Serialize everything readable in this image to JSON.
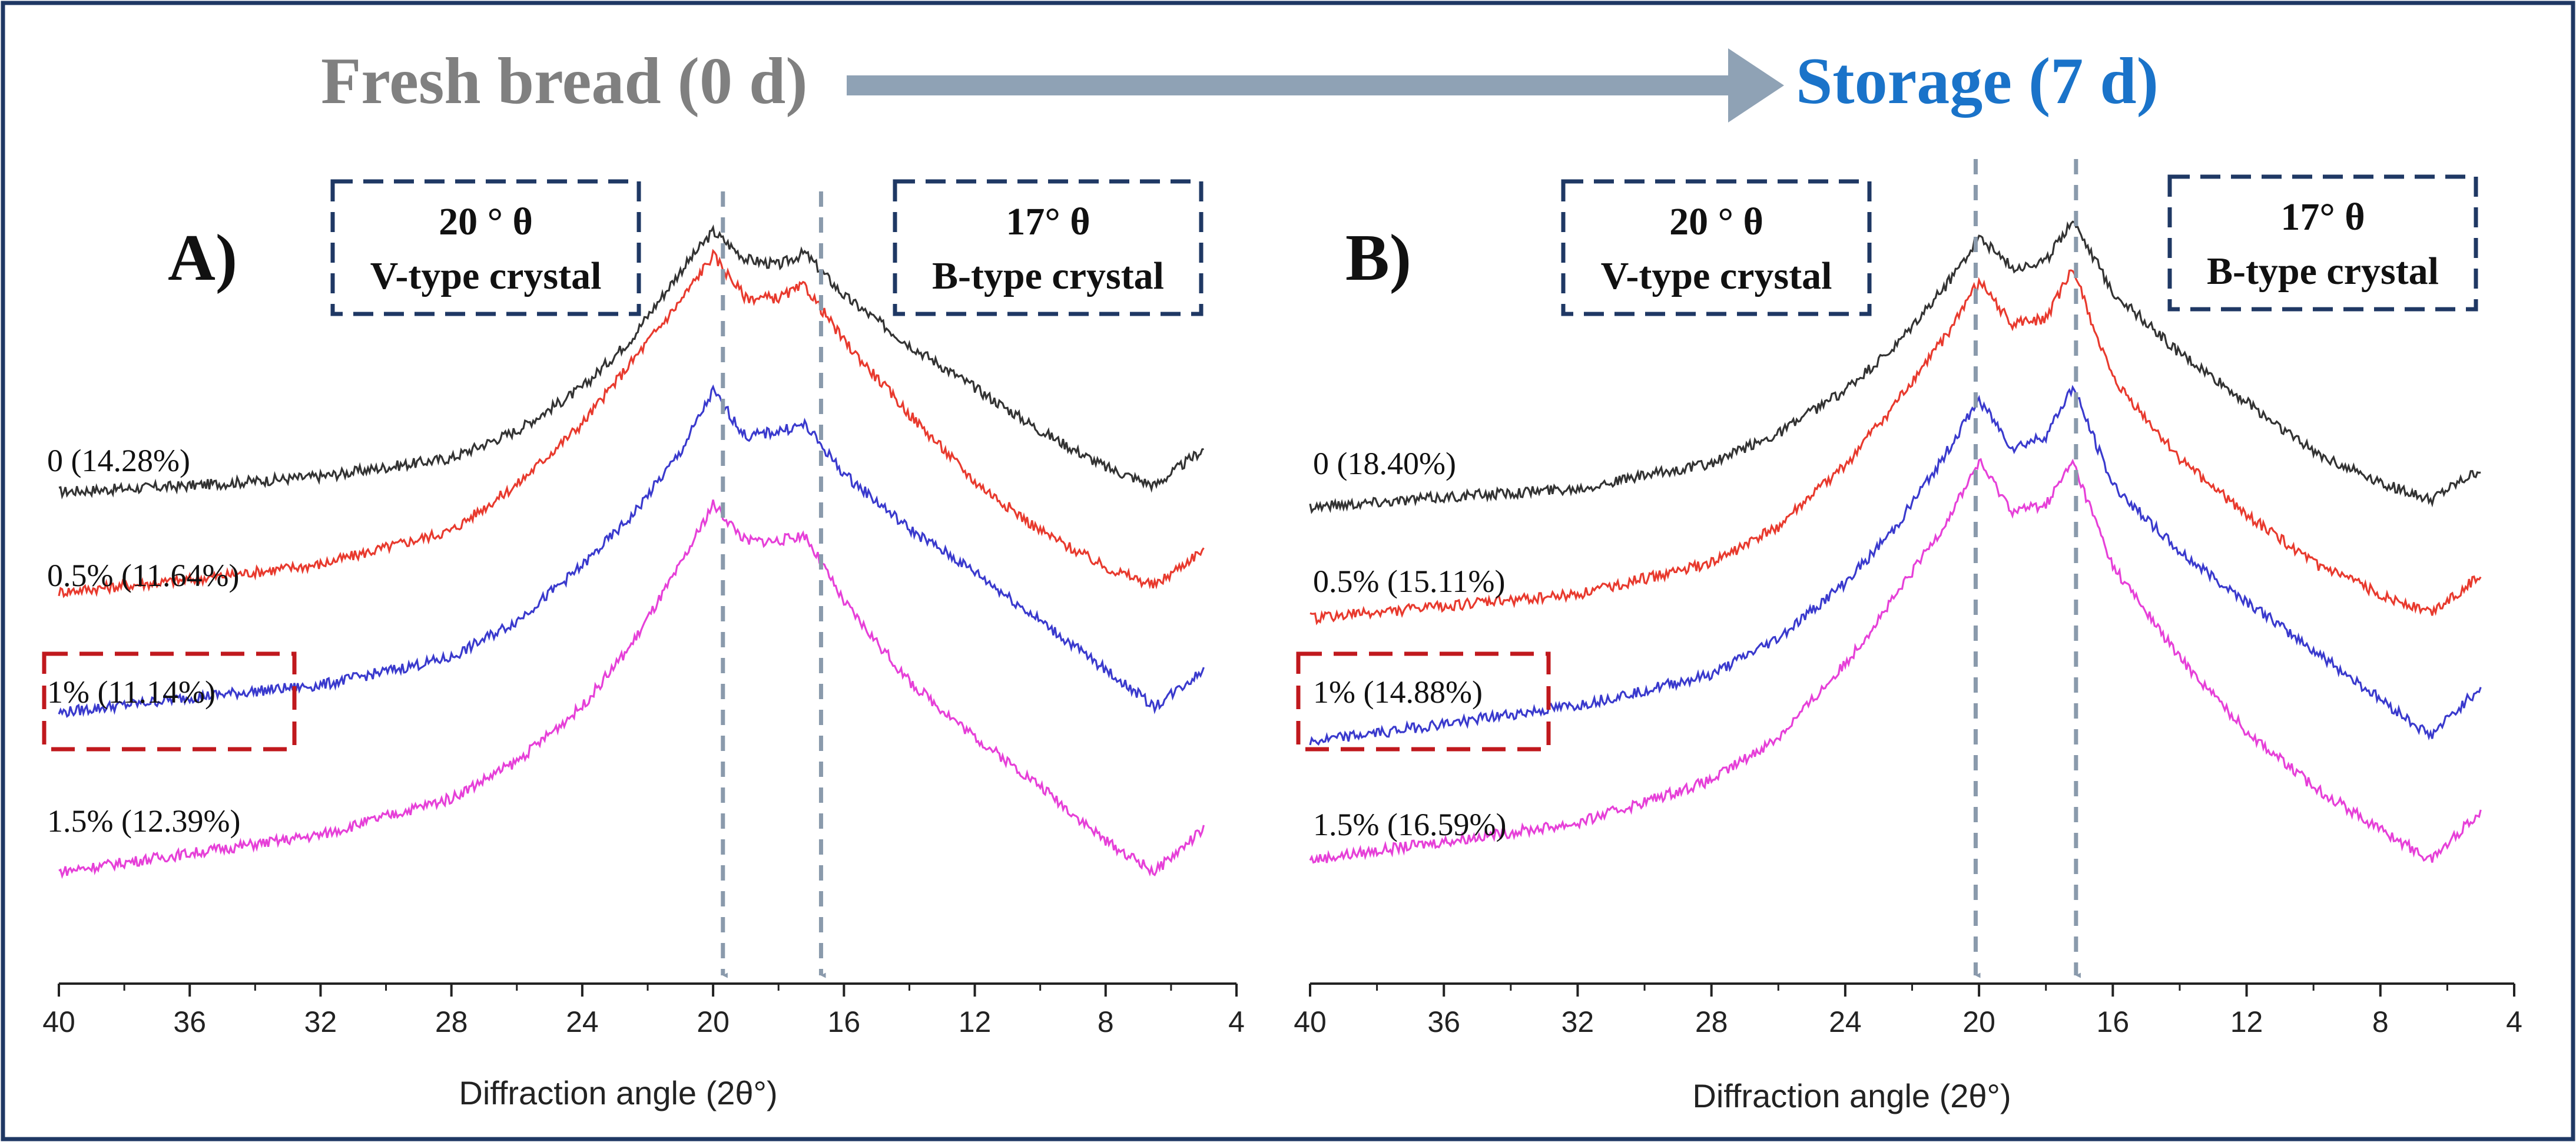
{
  "header": {
    "left_title": "Fresh bread (0 d)",
    "right_title": "Storage (7 d)",
    "left_color": "#808080",
    "right_color": "#1a73c9",
    "arrow_color": "#8fa2b5"
  },
  "colors": {
    "frame": "#1f3864",
    "box_border": "#1f3864",
    "highlight_border": "#c0181d",
    "guide": "#8a9aac"
  },
  "chart_data": [
    {
      "type": "line",
      "panel_label": "A)",
      "xlabel": "Diffraction angle (2θ°)",
      "xlim": [
        40,
        4
      ],
      "ticks": [
        "40",
        "36",
        "32",
        "28",
        "24",
        "20",
        "16",
        "12",
        "8",
        "4"
      ],
      "guides": [
        19.7,
        16.7
      ],
      "box_left": {
        "line1": "20 ° θ",
        "line2": "V-type crystal"
      },
      "box_right": {
        "line1": "17° θ",
        "line2": "B-type crystal"
      },
      "highlight_index": 2,
      "series": [
        {
          "name": "0 (14.28%)",
          "color": "#333333",
          "offset": 0.0,
          "x": [
            40,
            36,
            32,
            28,
            26,
            24,
            22.5,
            21,
            20,
            19,
            18,
            17.2,
            16,
            14,
            12,
            10,
            8,
            6.5,
            5
          ],
          "y": [
            0.0,
            0.02,
            0.05,
            0.11,
            0.2,
            0.34,
            0.5,
            0.72,
            0.85,
            0.76,
            0.74,
            0.78,
            0.64,
            0.48,
            0.34,
            0.2,
            0.08,
            0.02,
            0.14
          ]
        },
        {
          "name": "0.5% (11.64%)",
          "color": "#e83a2e",
          "offset": 1.0,
          "x": [
            40,
            36,
            32,
            28,
            26,
            24,
            22.5,
            21,
            20,
            19,
            18,
            17.2,
            16,
            14,
            12,
            10,
            8,
            6.5,
            5
          ],
          "y": [
            0.0,
            0.04,
            0.09,
            0.2,
            0.35,
            0.55,
            0.75,
            0.95,
            1.1,
            0.96,
            0.96,
            1.0,
            0.82,
            0.58,
            0.36,
            0.2,
            0.08,
            0.02,
            0.14
          ]
        },
        {
          "name": "1% (11.14%)",
          "color": "#3a3acd",
          "offset": 2.0,
          "x": [
            40,
            36,
            32,
            28,
            26,
            24,
            22.5,
            21,
            20,
            19,
            18,
            17.2,
            16,
            14,
            12,
            10,
            8,
            6.5,
            5
          ],
          "y": [
            0.0,
            0.05,
            0.09,
            0.18,
            0.3,
            0.48,
            0.64,
            0.85,
            1.05,
            0.9,
            0.92,
            0.94,
            0.78,
            0.6,
            0.46,
            0.3,
            0.14,
            0.02,
            0.14
          ]
        },
        {
          "name": "1.5% (12.39%)",
          "color": "#e640d8",
          "offset": 3.0,
          "x": [
            40,
            36,
            32,
            28,
            26,
            24,
            22.5,
            21,
            20,
            19,
            18,
            17.2,
            16,
            14,
            12,
            10,
            8,
            6.5,
            5
          ],
          "y": [
            0.0,
            0.06,
            0.12,
            0.24,
            0.36,
            0.54,
            0.74,
            1.0,
            1.2,
            1.08,
            1.08,
            1.1,
            0.88,
            0.62,
            0.44,
            0.28,
            0.1,
            0.0,
            0.14
          ]
        }
      ]
    },
    {
      "type": "line",
      "panel_label": "B)",
      "xlabel": "Diffraction angle (2θ°)",
      "xlim": [
        40,
        4
      ],
      "ticks": [
        "40",
        "36",
        "32",
        "28",
        "24",
        "20",
        "16",
        "12",
        "8",
        "4"
      ],
      "guides": [
        20.1,
        17.1
      ],
      "box_left": {
        "line1": "20 ° θ",
        "line2": "V-type crystal"
      },
      "box_right": {
        "line1": "17° θ",
        "line2": "B-type crystal"
      },
      "highlight_index": 2,
      "series": [
        {
          "name": "0 (18.40%)",
          "color": "#333333",
          "offset": 0.0,
          "x": [
            40,
            36,
            32,
            28,
            26,
            24,
            22.5,
            21,
            20,
            19,
            18,
            17.2,
            16,
            14,
            12,
            10,
            8,
            6.5,
            5
          ],
          "y": [
            0.0,
            0.03,
            0.06,
            0.14,
            0.24,
            0.38,
            0.52,
            0.72,
            0.88,
            0.78,
            0.8,
            0.94,
            0.7,
            0.5,
            0.34,
            0.18,
            0.08,
            0.02,
            0.12
          ]
        },
        {
          "name": "0.5% (15.11%)",
          "color": "#e83a2e",
          "offset": 1.0,
          "x": [
            40,
            36,
            32,
            28,
            26,
            24,
            22.5,
            21,
            20,
            19,
            18,
            17.2,
            16,
            14,
            12,
            10,
            8,
            6.5,
            5
          ],
          "y": [
            0.0,
            0.04,
            0.08,
            0.18,
            0.3,
            0.5,
            0.7,
            0.92,
            1.1,
            0.96,
            0.98,
            1.14,
            0.78,
            0.52,
            0.34,
            0.18,
            0.08,
            0.02,
            0.14
          ]
        },
        {
          "name": "1% (14.88%)",
          "color": "#3a3acd",
          "offset": 2.0,
          "x": [
            40,
            36,
            32,
            28,
            26,
            24,
            22.5,
            21,
            20,
            19,
            18,
            17.2,
            16,
            14,
            12,
            10,
            8,
            6.5,
            5
          ],
          "y": [
            0.0,
            0.06,
            0.12,
            0.22,
            0.34,
            0.52,
            0.7,
            0.94,
            1.12,
            0.96,
            1.0,
            1.16,
            0.84,
            0.62,
            0.46,
            0.3,
            0.14,
            0.02,
            0.18
          ]
        },
        {
          "name": "1.5% (16.59%)",
          "color": "#e640d8",
          "offset": 3.0,
          "x": [
            40,
            36,
            32,
            28,
            26,
            24,
            22.5,
            21,
            20,
            19,
            18,
            17.2,
            16,
            14,
            12,
            10,
            8,
            6.5,
            5
          ],
          "y": [
            0.0,
            0.06,
            0.12,
            0.26,
            0.4,
            0.64,
            0.86,
            1.1,
            1.3,
            1.14,
            1.16,
            1.3,
            0.96,
            0.66,
            0.42,
            0.24,
            0.1,
            0.0,
            0.16
          ]
        }
      ]
    }
  ]
}
